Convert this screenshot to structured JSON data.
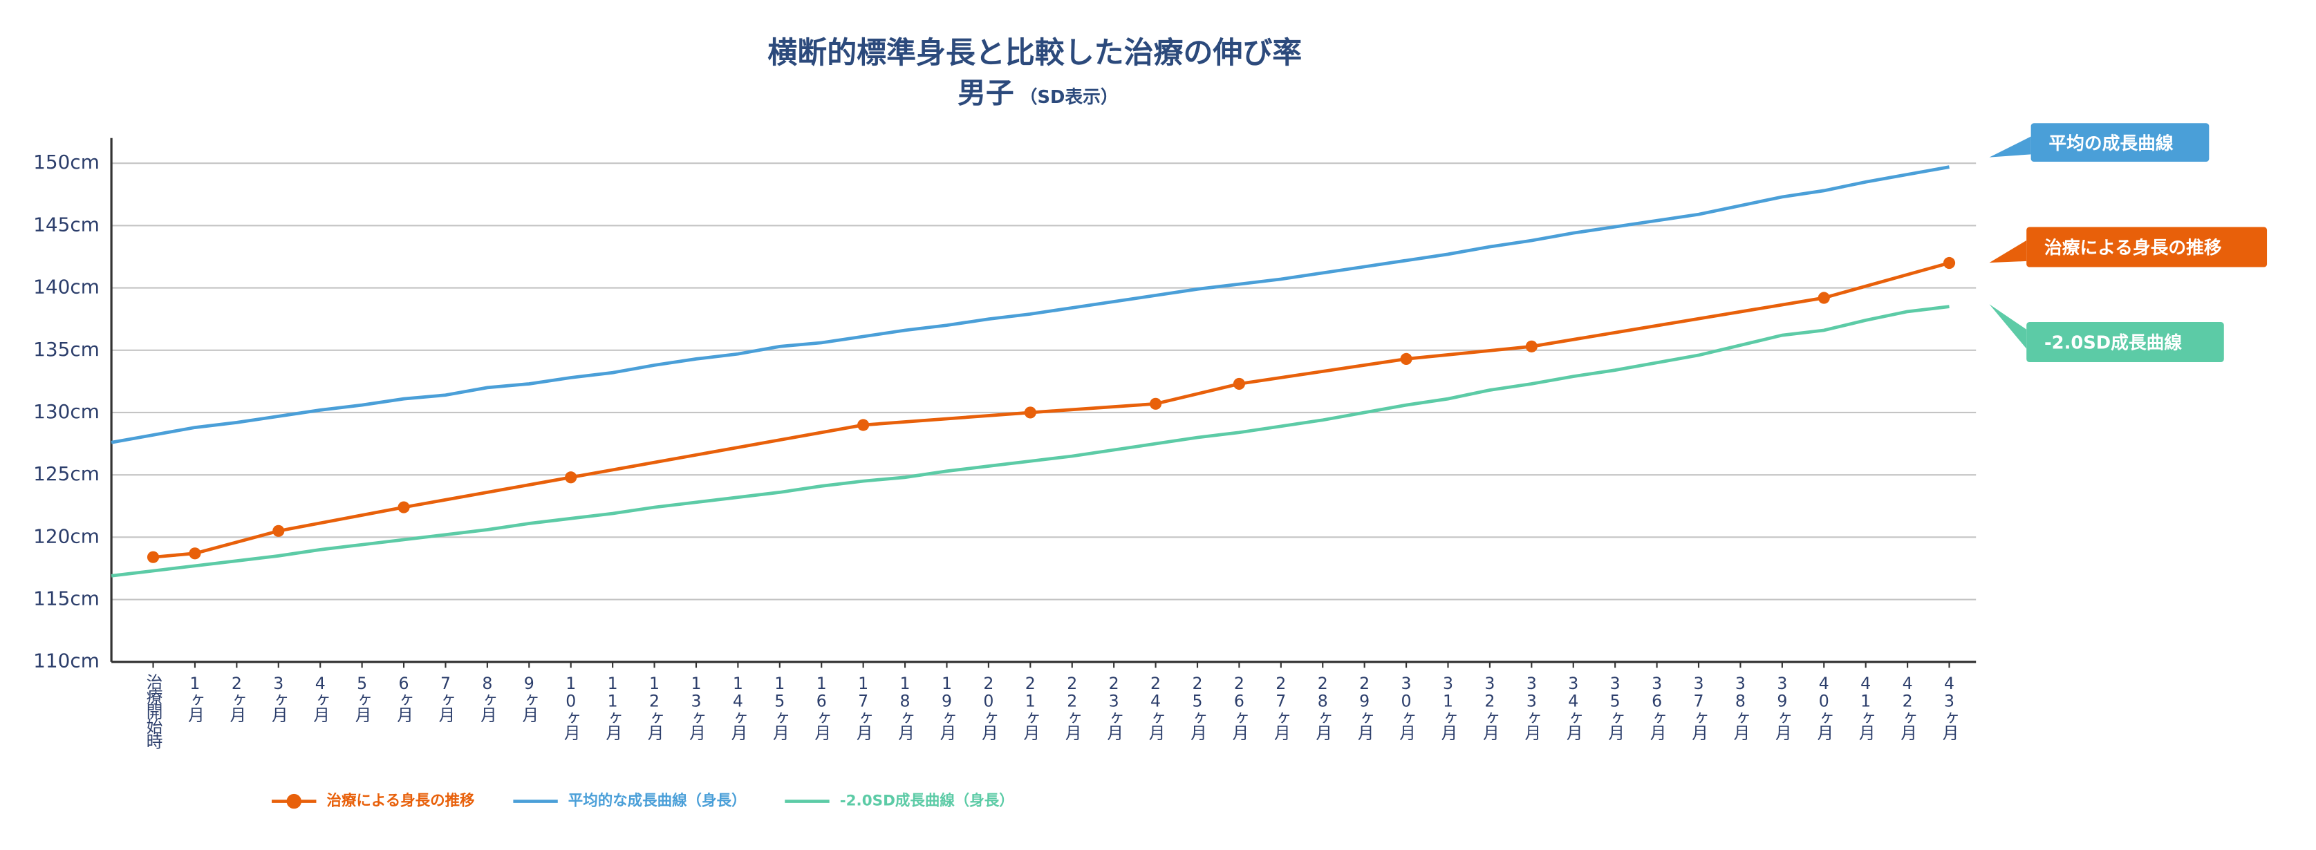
{
  "chart_data": {
    "type": "line",
    "title": "横断的標準身長と比較した治療の伸び率",
    "subtitle": "男子",
    "subtitle_note": "（SD表示）",
    "xlim": [
      -1,
      43.64
    ],
    "xticks": [
      {
        "value": 0,
        "label": "治療開始時"
      },
      {
        "value": 1,
        "label": "1ヶ月"
      },
      {
        "value": 2,
        "label": "2ヶ月"
      },
      {
        "value": 3,
        "label": "3ヶ月"
      },
      {
        "value": 4,
        "label": "4ヶ月"
      },
      {
        "value": 5,
        "label": "5ヶ月"
      },
      {
        "value": 6,
        "label": "6ヶ月"
      },
      {
        "value": 7,
        "label": "7ヶ月"
      },
      {
        "value": 8,
        "label": "8ヶ月"
      },
      {
        "value": 9,
        "label": "9ヶ月"
      },
      {
        "value": 10,
        "label": "10ヶ月"
      },
      {
        "value": 11,
        "label": "11ヶ月"
      },
      {
        "value": 12,
        "label": "12ヶ月"
      },
      {
        "value": 13,
        "label": "13ヶ月"
      },
      {
        "value": 14,
        "label": "14ヶ月"
      },
      {
        "value": 15,
        "label": "15ヶ月"
      },
      {
        "value": 16,
        "label": "16ヶ月"
      },
      {
        "value": 17,
        "label": "17ヶ月"
      },
      {
        "value": 18,
        "label": "18ヶ月"
      },
      {
        "value": 19,
        "label": "19ヶ月"
      },
      {
        "value": 20,
        "label": "20ヶ月"
      },
      {
        "value": 21,
        "label": "21ヶ月"
      },
      {
        "value": 22,
        "label": "22ヶ月"
      },
      {
        "value": 23,
        "label": "23ヶ月"
      },
      {
        "value": 24,
        "label": "24ヶ月"
      },
      {
        "value": 25,
        "label": "25ヶ月"
      },
      {
        "value": 26,
        "label": "26ヶ月"
      },
      {
        "value": 27,
        "label": "27ヶ月"
      },
      {
        "value": 28,
        "label": "28ヶ月"
      },
      {
        "value": 29,
        "label": "29ヶ月"
      },
      {
        "value": 30,
        "label": "30ヶ月"
      },
      {
        "value": 31,
        "label": "31ヶ月"
      },
      {
        "value": 32,
        "label": "32ヶ月"
      },
      {
        "value": 33,
        "label": "33ヶ月"
      },
      {
        "value": 34,
        "label": "34ヶ月"
      },
      {
        "value": 35,
        "label": "35ヶ月"
      },
      {
        "value": 36,
        "label": "36ヶ月"
      },
      {
        "value": 37,
        "label": "37ヶ月"
      },
      {
        "value": 38,
        "label": "38ヶ月"
      },
      {
        "value": 39,
        "label": "39ヶ月"
      },
      {
        "value": 40,
        "label": "40ヶ月"
      },
      {
        "value": 41,
        "label": "41ヶ月"
      },
      {
        "value": 42,
        "label": "42ヶ月"
      },
      {
        "value": 43,
        "label": "43ヶ月"
      }
    ],
    "ylim": [
      110,
      150
    ],
    "yticks": [
      {
        "value": 110,
        "label": "110cm"
      },
      {
        "value": 115,
        "label": "115cm"
      },
      {
        "value": 120,
        "label": "120cm"
      },
      {
        "value": 125,
        "label": "125cm"
      },
      {
        "value": 130,
        "label": "130cm"
      },
      {
        "value": 135,
        "label": "135cm"
      },
      {
        "value": 140,
        "label": "140cm"
      },
      {
        "value": 145,
        "label": "145cm"
      },
      {
        "value": 150,
        "label": "150cm"
      }
    ],
    "grid": true,
    "series": [
      {
        "name": "治療による身長の推移",
        "color": "#e8600a",
        "markers": true,
        "x": [
          0,
          1,
          3,
          6,
          10,
          17,
          21,
          24,
          26,
          30,
          33,
          40,
          43
        ],
        "values": [
          118.4,
          118.7,
          120.5,
          122.4,
          124.8,
          129.0,
          130.0,
          130.7,
          132.3,
          134.3,
          135.3,
          139.2,
          142.0
        ]
      },
      {
        "name": "平均的な成長曲線（身長）",
        "color": "#4a9fd8",
        "markers": false,
        "x": [
          -1,
          0,
          1,
          2,
          3,
          4,
          5,
          6,
          7,
          8,
          9,
          10,
          11,
          12,
          13,
          14,
          15,
          16,
          17,
          18,
          19,
          20,
          21,
          22,
          23,
          24,
          25,
          26,
          27,
          28,
          29,
          30,
          31,
          32,
          33,
          34,
          35,
          36,
          37,
          38,
          39,
          40,
          41,
          42,
          43
        ],
        "values": [
          127.6,
          128.2,
          128.8,
          129.2,
          129.7,
          130.2,
          130.6,
          131.1,
          131.4,
          132.0,
          132.3,
          132.8,
          133.2,
          133.8,
          134.3,
          134.7,
          135.3,
          135.6,
          136.1,
          136.6,
          137.0,
          137.5,
          137.9,
          138.4,
          138.9,
          139.4,
          139.9,
          140.3,
          140.7,
          141.2,
          141.7,
          142.2,
          142.7,
          143.3,
          143.8,
          144.4,
          144.9,
          145.4,
          145.9,
          146.6,
          147.3,
          147.8,
          148.5,
          149.1,
          149.7
        ]
      },
      {
        "name": "-2.0SD成長曲線（身長）",
        "color": "#5ccba6",
        "markers": false,
        "x": [
          -1,
          0,
          1,
          2,
          3,
          4,
          5,
          6,
          7,
          8,
          9,
          10,
          11,
          12,
          13,
          14,
          15,
          16,
          17,
          18,
          19,
          20,
          21,
          22,
          23,
          24,
          25,
          26,
          27,
          28,
          29,
          30,
          31,
          32,
          33,
          34,
          35,
          36,
          37,
          38,
          39,
          40,
          41,
          42,
          43
        ],
        "values": [
          116.9,
          117.3,
          117.7,
          118.1,
          118.5,
          119.0,
          119.4,
          119.8,
          120.2,
          120.6,
          121.1,
          121.5,
          121.9,
          122.4,
          122.8,
          123.2,
          123.6,
          124.1,
          124.5,
          124.8,
          125.3,
          125.7,
          126.1,
          126.5,
          127.0,
          127.5,
          128.0,
          128.4,
          128.9,
          129.4,
          130.0,
          130.6,
          131.1,
          131.8,
          132.3,
          132.9,
          133.4,
          134.0,
          134.6,
          135.4,
          136.2,
          136.6,
          137.4,
          138.1,
          138.5
        ]
      }
    ],
    "callouts": [
      {
        "text": "平均の成長曲線",
        "color": "#4a9fd8"
      },
      {
        "text": "治療による身長の推移",
        "color": "#e8600a"
      },
      {
        "text": "-2.0SD成長曲線",
        "color": "#5ccba6"
      }
    ]
  }
}
